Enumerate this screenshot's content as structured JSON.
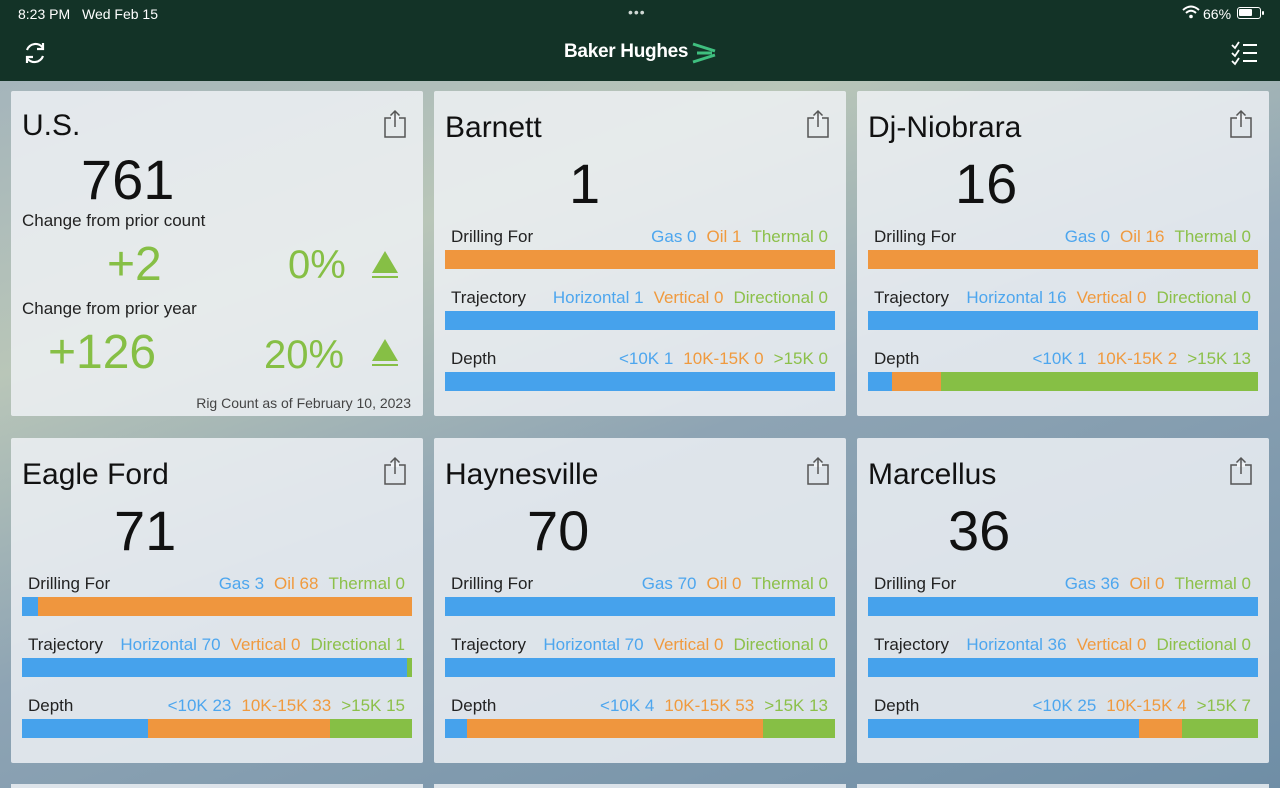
{
  "status": {
    "time": "8:23 PM",
    "date": "Wed Feb 15",
    "battery": "66%",
    "battery_level": 0.66
  },
  "header": {
    "brand": "Baker Hughes",
    "left_icon": "refresh-icon",
    "right_icon": "checklist-icon"
  },
  "colors": {
    "gas": "#46a2ec",
    "oil": "#ef963e",
    "thermal": "#86bf45",
    "topbar": "#133327"
  },
  "us": {
    "title": "U.S.",
    "count": "761",
    "prior_count_label": "Change from prior count",
    "prior_count_change": "+2",
    "prior_count_pct": "0%",
    "prior_year_label": "Change from prior year",
    "prior_year_change": "+126",
    "prior_year_pct": "20%",
    "footer": "Rig Count as of February 10, 2023"
  },
  "labels": {
    "drilling": "Drilling For",
    "trajectory": "Trajectory",
    "depth": "Depth"
  },
  "basins": [
    {
      "name": "Barnett",
      "count": "1",
      "drilling": {
        "gas": "Gas 0",
        "oil": "Oil 1",
        "thermal": "Thermal 0",
        "values": [
          0,
          1,
          0
        ]
      },
      "trajectory": {
        "horizontal": "Horizontal 1",
        "vertical": "Vertical 0",
        "directional": "Directional 0",
        "values": [
          1,
          0,
          0
        ]
      },
      "depth": {
        "shallow": "<10K 1",
        "mid": "10K-15K 0",
        "deep": ">15K 0",
        "values": [
          1,
          0,
          0
        ]
      }
    },
    {
      "name": "Dj-Niobrara",
      "count": "16",
      "drilling": {
        "gas": "Gas 0",
        "oil": "Oil 16",
        "thermal": "Thermal 0",
        "values": [
          0,
          16,
          0
        ]
      },
      "trajectory": {
        "horizontal": "Horizontal 16",
        "vertical": "Vertical 0",
        "directional": "Directional 0",
        "values": [
          16,
          0,
          0
        ]
      },
      "depth": {
        "shallow": "<10K 1",
        "mid": "10K-15K 2",
        "deep": ">15K 13",
        "values": [
          1,
          2,
          13
        ]
      }
    },
    {
      "name": "Eagle Ford",
      "count": "71",
      "drilling": {
        "gas": "Gas 3",
        "oil": "Oil 68",
        "thermal": "Thermal 0",
        "values": [
          3,
          68,
          0
        ]
      },
      "trajectory": {
        "horizontal": "Horizontal 70",
        "vertical": "Vertical 0",
        "directional": "Directional 1",
        "values": [
          70,
          0,
          1
        ]
      },
      "depth": {
        "shallow": "<10K 23",
        "mid": "10K-15K 33",
        "deep": ">15K 15",
        "values": [
          23,
          33,
          15
        ]
      }
    },
    {
      "name": "Haynesville",
      "count": "70",
      "drilling": {
        "gas": "Gas 70",
        "oil": "Oil 0",
        "thermal": "Thermal 0",
        "values": [
          70,
          0,
          0
        ]
      },
      "trajectory": {
        "horizontal": "Horizontal 70",
        "vertical": "Vertical 0",
        "directional": "Directional 0",
        "values": [
          70,
          0,
          0
        ]
      },
      "depth": {
        "shallow": "<10K 4",
        "mid": "10K-15K 53",
        "deep": ">15K 13",
        "values": [
          4,
          53,
          13
        ]
      }
    },
    {
      "name": "Marcellus",
      "count": "36",
      "drilling": {
        "gas": "Gas 36",
        "oil": "Oil 0",
        "thermal": "Thermal 0",
        "values": [
          36,
          0,
          0
        ]
      },
      "trajectory": {
        "horizontal": "Horizontal 36",
        "vertical": "Vertical 0",
        "directional": "Directional 0",
        "values": [
          36,
          0,
          0
        ]
      },
      "depth": {
        "shallow": "<10K 25",
        "mid": "10K-15K 4",
        "deep": ">15K 7",
        "values": [
          25,
          4,
          7
        ]
      }
    }
  ]
}
